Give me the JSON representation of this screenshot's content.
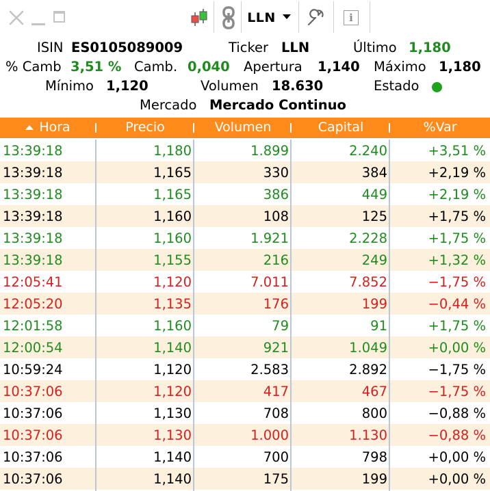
{
  "toolbar": {
    "close_icon": "close-icon",
    "minimize_icon": "minimize-icon",
    "maximize_icon": "maximize-icon",
    "chart_icon": "candlestick-chart-icon",
    "link_icon": "link-icon",
    "ticker": "LLN",
    "settings_icon": "wrench-icon",
    "info_icon": "info-icon",
    "info_glyph": "i"
  },
  "summary": {
    "isin_label": "ISIN",
    "isin_value": "ES0105089009",
    "ticker_label": "Ticker",
    "ticker_value": "LLN",
    "ultimo_label": "Último",
    "ultimo_value": "1,180",
    "pct_label": "% Camb",
    "pct_value": "3,51 %",
    "camb_label": "Camb.",
    "camb_value": "0,040",
    "apertura_label": "Apertura",
    "apertura_value": "1,140",
    "maximo_label": "Máximo",
    "maximo_value": "1,180",
    "minimo_label": "Mínimo",
    "minimo_value": "1,120",
    "volumen_label": "Volumen",
    "volumen_value": "18.630",
    "estado_label": "Estado",
    "mercado_label": "Mercado",
    "mercado_value": "Mercado Continuo"
  },
  "table": {
    "headers": [
      "Hora",
      "Precio",
      "Volumen",
      "Capital",
      "%Var"
    ],
    "rows": [
      {
        "hora": "13:39:18",
        "precio": "1,180",
        "volumen": "1.899",
        "capital": "2.240",
        "var": "+3,51 %",
        "color": "green"
      },
      {
        "hora": "13:39:18",
        "precio": "1,165",
        "volumen": "330",
        "capital": "384",
        "var": "+2,19 %",
        "color": "black"
      },
      {
        "hora": "13:39:18",
        "precio": "1,165",
        "volumen": "386",
        "capital": "449",
        "var": "+2,19 %",
        "color": "green"
      },
      {
        "hora": "13:39:18",
        "precio": "1,160",
        "volumen": "108",
        "capital": "125",
        "var": "+1,75 %",
        "color": "black"
      },
      {
        "hora": "13:39:18",
        "precio": "1,160",
        "volumen": "1.921",
        "capital": "2.228",
        "var": "+1,75 %",
        "color": "green"
      },
      {
        "hora": "13:39:18",
        "precio": "1,155",
        "volumen": "216",
        "capital": "249",
        "var": "+1,32 %",
        "color": "green"
      },
      {
        "hora": "12:05:41",
        "precio": "1,120",
        "volumen": "7.011",
        "capital": "7.852",
        "var": "−1,75 %",
        "color": "red"
      },
      {
        "hora": "12:05:20",
        "precio": "1,135",
        "volumen": "176",
        "capital": "199",
        "var": "−0,44 %",
        "color": "red"
      },
      {
        "hora": "12:01:58",
        "precio": "1,160",
        "volumen": "79",
        "capital": "91",
        "var": "+1,75 %",
        "color": "green"
      },
      {
        "hora": "12:00:54",
        "precio": "1,140",
        "volumen": "921",
        "capital": "1.049",
        "var": "+0,00 %",
        "color": "green"
      },
      {
        "hora": "10:59:24",
        "precio": "1,120",
        "volumen": "2.583",
        "capital": "2.892",
        "var": "−1,75 %",
        "color": "black"
      },
      {
        "hora": "10:37:06",
        "precio": "1,120",
        "volumen": "417",
        "capital": "467",
        "var": "−1,75 %",
        "color": "red"
      },
      {
        "hora": "10:37:06",
        "precio": "1,130",
        "volumen": "708",
        "capital": "800",
        "var": "−0,88 %",
        "color": "black"
      },
      {
        "hora": "10:37:06",
        "precio": "1,130",
        "volumen": "1.000",
        "capital": "1.130",
        "var": "−0,88 %",
        "color": "red"
      },
      {
        "hora": "10:37:06",
        "precio": "1,140",
        "volumen": "700",
        "capital": "798",
        "var": "+0,00 %",
        "color": "black"
      },
      {
        "hora": "10:37:06",
        "precio": "1,140",
        "volumen": "175",
        "capital": "199",
        "var": "+0,00 %",
        "color": "black"
      }
    ]
  },
  "colors": {
    "header_bg": "#ff8a1c",
    "alt_row_bg": "#fdf0dc",
    "up": "#1f8c1f",
    "down": "#d81f1f",
    "status_dot": "#1fa21f"
  }
}
